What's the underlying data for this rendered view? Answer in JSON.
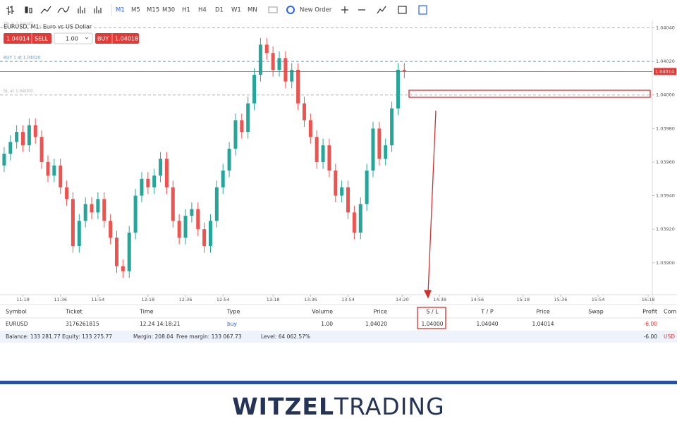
{
  "toolbar": {
    "timeframes": [
      "M1",
      "M5",
      "M15",
      "M30",
      "H1",
      "H4",
      "D1",
      "W1",
      "MN"
    ],
    "new_order": "New Order"
  },
  "order_panel": {
    "sell_price": "1.04014",
    "sell": "SELL",
    "volume": "1.00",
    "buy": "BUY",
    "buy_price": "1.04018"
  },
  "chart_data": {
    "type": "candlestick",
    "title": "EURUSD, M1: Euro vs US Dollar",
    "x": [
      "11:09",
      "11:12",
      "11:15",
      "11:18",
      "11:21",
      "11:24",
      "11:27",
      "11:30",
      "11:33",
      "11:36",
      "11:39",
      "11:42",
      "11:45",
      "11:48",
      "11:51",
      "11:54",
      "11:57",
      "12:00",
      "12:03",
      "12:06",
      "12:09",
      "12:12",
      "12:15",
      "12:18",
      "12:21",
      "12:24",
      "12:27",
      "12:30",
      "12:33",
      "12:36",
      "12:39",
      "12:42",
      "12:45",
      "12:48",
      "12:51",
      "12:54",
      "12:57",
      "13:00",
      "13:03",
      "13:06",
      "13:09",
      "13:12",
      "13:15",
      "13:18",
      "13:21",
      "13:24",
      "13:27",
      "13:30",
      "13:33",
      "13:36",
      "13:39",
      "13:42",
      "13:45",
      "13:48",
      "13:51",
      "13:54",
      "13:57",
      "14:00",
      "14:03",
      "14:06",
      "14:09",
      "14:12",
      "14:15",
      "14:18",
      "14:21"
    ],
    "series": [
      {
        "name": "EURUSD",
        "up_color": "#26a69a",
        "down_color": "#ef5350",
        "open": [
          1.03958,
          1.03965,
          1.03972,
          1.03978,
          1.0397,
          1.03982,
          1.03975,
          1.0396,
          1.03952,
          1.03958,
          1.03945,
          1.03938,
          1.0391,
          1.03925,
          1.03935,
          1.0393,
          1.03938,
          1.03925,
          1.03915,
          1.03898,
          1.03895,
          1.03918,
          1.0394,
          1.0395,
          1.03945,
          1.03952,
          1.03962,
          1.03945,
          1.03925,
          1.03915,
          1.03928,
          1.03932,
          1.0392,
          1.0391,
          1.03925,
          1.03945,
          1.03955,
          1.03968,
          1.03985,
          1.03978,
          1.03995,
          1.04012,
          1.0403,
          1.04025,
          1.04015,
          1.04022,
          1.04008,
          1.04015,
          1.03995,
          1.03985,
          1.03975,
          1.0396,
          1.0397,
          1.03955,
          1.0394,
          1.03945,
          1.0393,
          1.03918,
          1.03935,
          1.03955,
          1.0398,
          1.03962,
          1.0397,
          1.03992,
          1.04015
        ],
        "high": [
          1.03969,
          1.03976,
          1.03982,
          1.03982,
          1.03986,
          1.03986,
          1.03979,
          1.03964,
          1.03962,
          1.03962,
          1.03949,
          1.03942,
          1.03929,
          1.03939,
          1.03939,
          1.03942,
          1.03942,
          1.03929,
          1.03919,
          1.03902,
          1.03922,
          1.03944,
          1.03954,
          1.03954,
          1.03956,
          1.03966,
          1.03966,
          1.03949,
          1.03929,
          1.03932,
          1.03936,
          1.03936,
          1.03924,
          1.03929,
          1.03949,
          1.03959,
          1.03972,
          1.03989,
          1.03989,
          1.03999,
          1.04016,
          1.04034,
          1.04034,
          1.04029,
          1.04026,
          1.04026,
          1.04019,
          1.04019,
          1.03999,
          1.03989,
          1.03979,
          1.03974,
          1.03974,
          1.03959,
          1.03949,
          1.03949,
          1.03934,
          1.03939,
          1.03959,
          1.03984,
          1.03984,
          1.03974,
          1.03996,
          1.04019,
          1.04019
        ],
        "low": [
          1.03954,
          1.03961,
          1.03968,
          1.03966,
          1.03966,
          1.03971,
          1.03956,
          1.03948,
          1.03948,
          1.03941,
          1.03934,
          1.03906,
          1.03906,
          1.03921,
          1.03926,
          1.03926,
          1.03921,
          1.03911,
          1.03894,
          1.03891,
          1.03891,
          1.03914,
          1.03936,
          1.03941,
          1.03941,
          1.03948,
          1.03941,
          1.03921,
          1.03911,
          1.03911,
          1.03924,
          1.03916,
          1.03906,
          1.03906,
          1.03921,
          1.03941,
          1.03951,
          1.03964,
          1.03974,
          1.03974,
          1.03991,
          1.04008,
          1.04021,
          1.04011,
          1.04011,
          1.04004,
          1.04004,
          1.03991,
          1.03981,
          1.03971,
          1.03956,
          1.03956,
          1.03951,
          1.03936,
          1.03936,
          1.03926,
          1.03914,
          1.03914,
          1.03931,
          1.03951,
          1.03958,
          1.03958,
          1.03966,
          1.03988,
          1.0401
        ],
        "close": [
          1.03965,
          1.03972,
          1.03978,
          1.0397,
          1.03982,
          1.03975,
          1.0396,
          1.03952,
          1.03958,
          1.03945,
          1.03938,
          1.0391,
          1.03925,
          1.03935,
          1.0393,
          1.03938,
          1.03925,
          1.03915,
          1.03898,
          1.03895,
          1.03918,
          1.0394,
          1.0395,
          1.03945,
          1.03952,
          1.03962,
          1.03945,
          1.03925,
          1.03915,
          1.03928,
          1.03932,
          1.0392,
          1.0391,
          1.03925,
          1.03945,
          1.03955,
          1.03968,
          1.03985,
          1.03978,
          1.03995,
          1.04012,
          1.0403,
          1.04025,
          1.04015,
          1.04022,
          1.04008,
          1.04015,
          1.03995,
          1.03985,
          1.03975,
          1.0396,
          1.0397,
          1.03955,
          1.0394,
          1.03945,
          1.0393,
          1.03918,
          1.03935,
          1.03955,
          1.0398,
          1.03962,
          1.0397,
          1.03992,
          1.04015,
          1.04014
        ]
      }
    ],
    "xlim": [
      "11:07",
      "16:20"
    ],
    "xticks": [
      "11:18",
      "11:36",
      "11:54",
      "12:18",
      "12:36",
      "12:54",
      "13:18",
      "13:36",
      "13:54",
      "14:20",
      "14:38",
      "14:56",
      "15:18",
      "15:36",
      "15:54",
      "16:18"
    ],
    "ylim": [
      1.03881,
      1.04044
    ],
    "yticks": [
      {
        "value": 1.039,
        "label": "1.03900"
      },
      {
        "value": 1.0392,
        "label": "1.03920"
      },
      {
        "value": 1.0394,
        "label": "1.03940"
      },
      {
        "value": 1.0396,
        "label": "1.03960"
      },
      {
        "value": 1.0398,
        "label": "1.03980"
      },
      {
        "value": 1.04,
        "label": "1.04000"
      },
      {
        "value": 1.0402,
        "label": "1.04020"
      },
      {
        "value": 1.0404,
        "label": "1.04040"
      }
    ],
    "levels": [
      {
        "name": "TP at 1.04040",
        "value": 1.0404,
        "color": "#b0b0b0"
      },
      {
        "name": "BUY 1 at 1.04020",
        "value": 1.0402,
        "color": "#5b9bd5"
      },
      {
        "name": "SL at 1.04000",
        "value": 1.04,
        "color": "#b0b0b0"
      }
    ],
    "current_price": {
      "value": 1.04014,
      "label": "1.04014",
      "color": "#e53935"
    }
  },
  "positions": {
    "columns": [
      "Symbol",
      "Ticket",
      "Time",
      "Type",
      "Volume",
      "Price",
      "S / L",
      "T / P",
      "Price",
      "Swap",
      "Profit",
      "Comm"
    ],
    "rows": [
      [
        "EURUSD",
        "3176261815",
        "12.24 14:18:21",
        "buy",
        "1.00",
        "1.04020",
        "1.04000",
        "1.04040",
        "1.04014",
        null,
        "-6.00",
        null
      ]
    ]
  },
  "account": {
    "items": [
      "Balance: 133 281.77",
      "Equity: 133 275.77",
      "Margin: 208.04",
      "Free margin: 133 067.73",
      "Level: 64 062.57%"
    ],
    "profit": "-6.00",
    "currency": "USD"
  },
  "footer": {
    "brand_bold": "WITZEL",
    "brand_light": "TRADING"
  }
}
